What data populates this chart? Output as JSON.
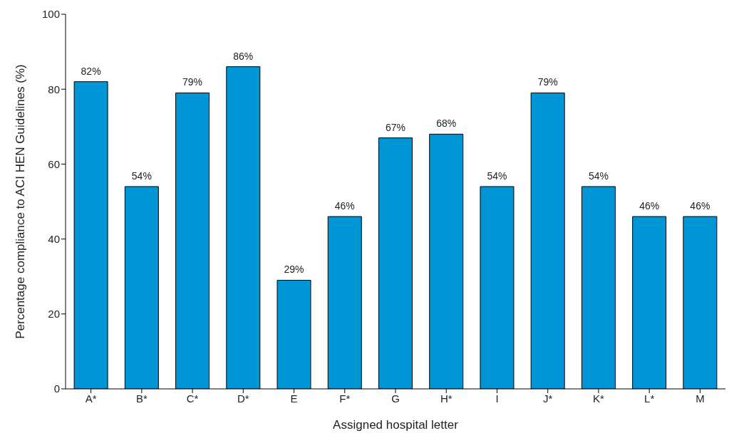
{
  "chart_data": {
    "type": "bar",
    "xlabel": "Assigned hospital letter",
    "ylabel": "Percentage compliance to ACI HEN Guidelines (%)",
    "categories": [
      "A*",
      "B*",
      "C*",
      "D*",
      "E",
      "F*",
      "G",
      "H*",
      "I",
      "J*",
      "K*",
      "L*",
      "M"
    ],
    "values": [
      82,
      54,
      79,
      86,
      29,
      46,
      67,
      68,
      54,
      79,
      54,
      46,
      46
    ],
    "value_labels": [
      "82%",
      "54%",
      "79%",
      "86%",
      "29%",
      "46%",
      "67%",
      "68%",
      "54%",
      "79%",
      "54%",
      "46%",
      "46%"
    ],
    "color": "#0096d6",
    "ylim": [
      0,
      100
    ],
    "yticks": [
      0,
      20,
      40,
      60,
      80,
      100
    ],
    "grid": false,
    "legend": false
  }
}
